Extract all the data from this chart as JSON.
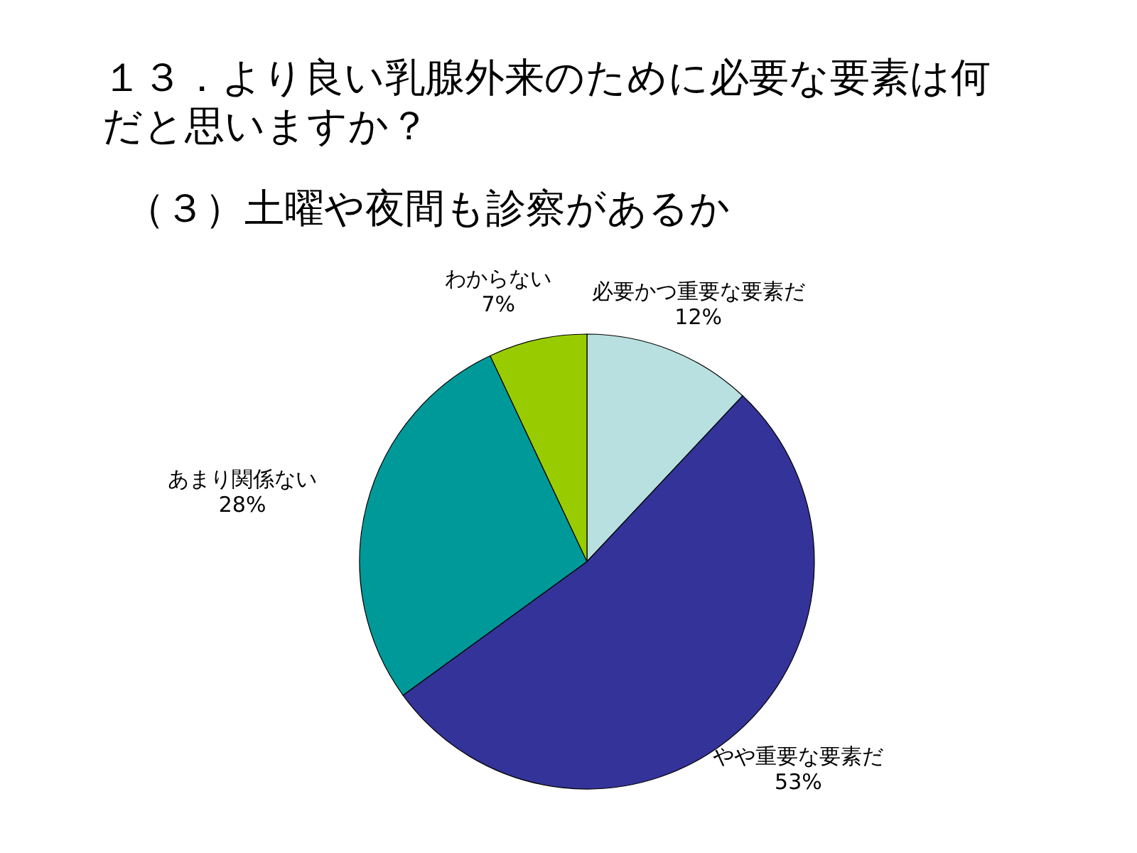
{
  "chart_data": {
    "type": "pie",
    "title": "１３．より良い乳腺外来のために必要な要素は何だと思いますか？",
    "subtitle": "（３）土曜や夜間も診察があるか",
    "categories": [
      "必要かつ重要な要素だ",
      "やや重要な要素だ",
      "あまり関係ない",
      "わからない"
    ],
    "values": [
      12,
      53,
      28,
      7
    ],
    "value_labels": [
      "12%",
      "53%",
      "28%",
      "7%"
    ],
    "colors": [
      "#b8e0e0",
      "#333399",
      "#009999",
      "#99cc00"
    ]
  }
}
